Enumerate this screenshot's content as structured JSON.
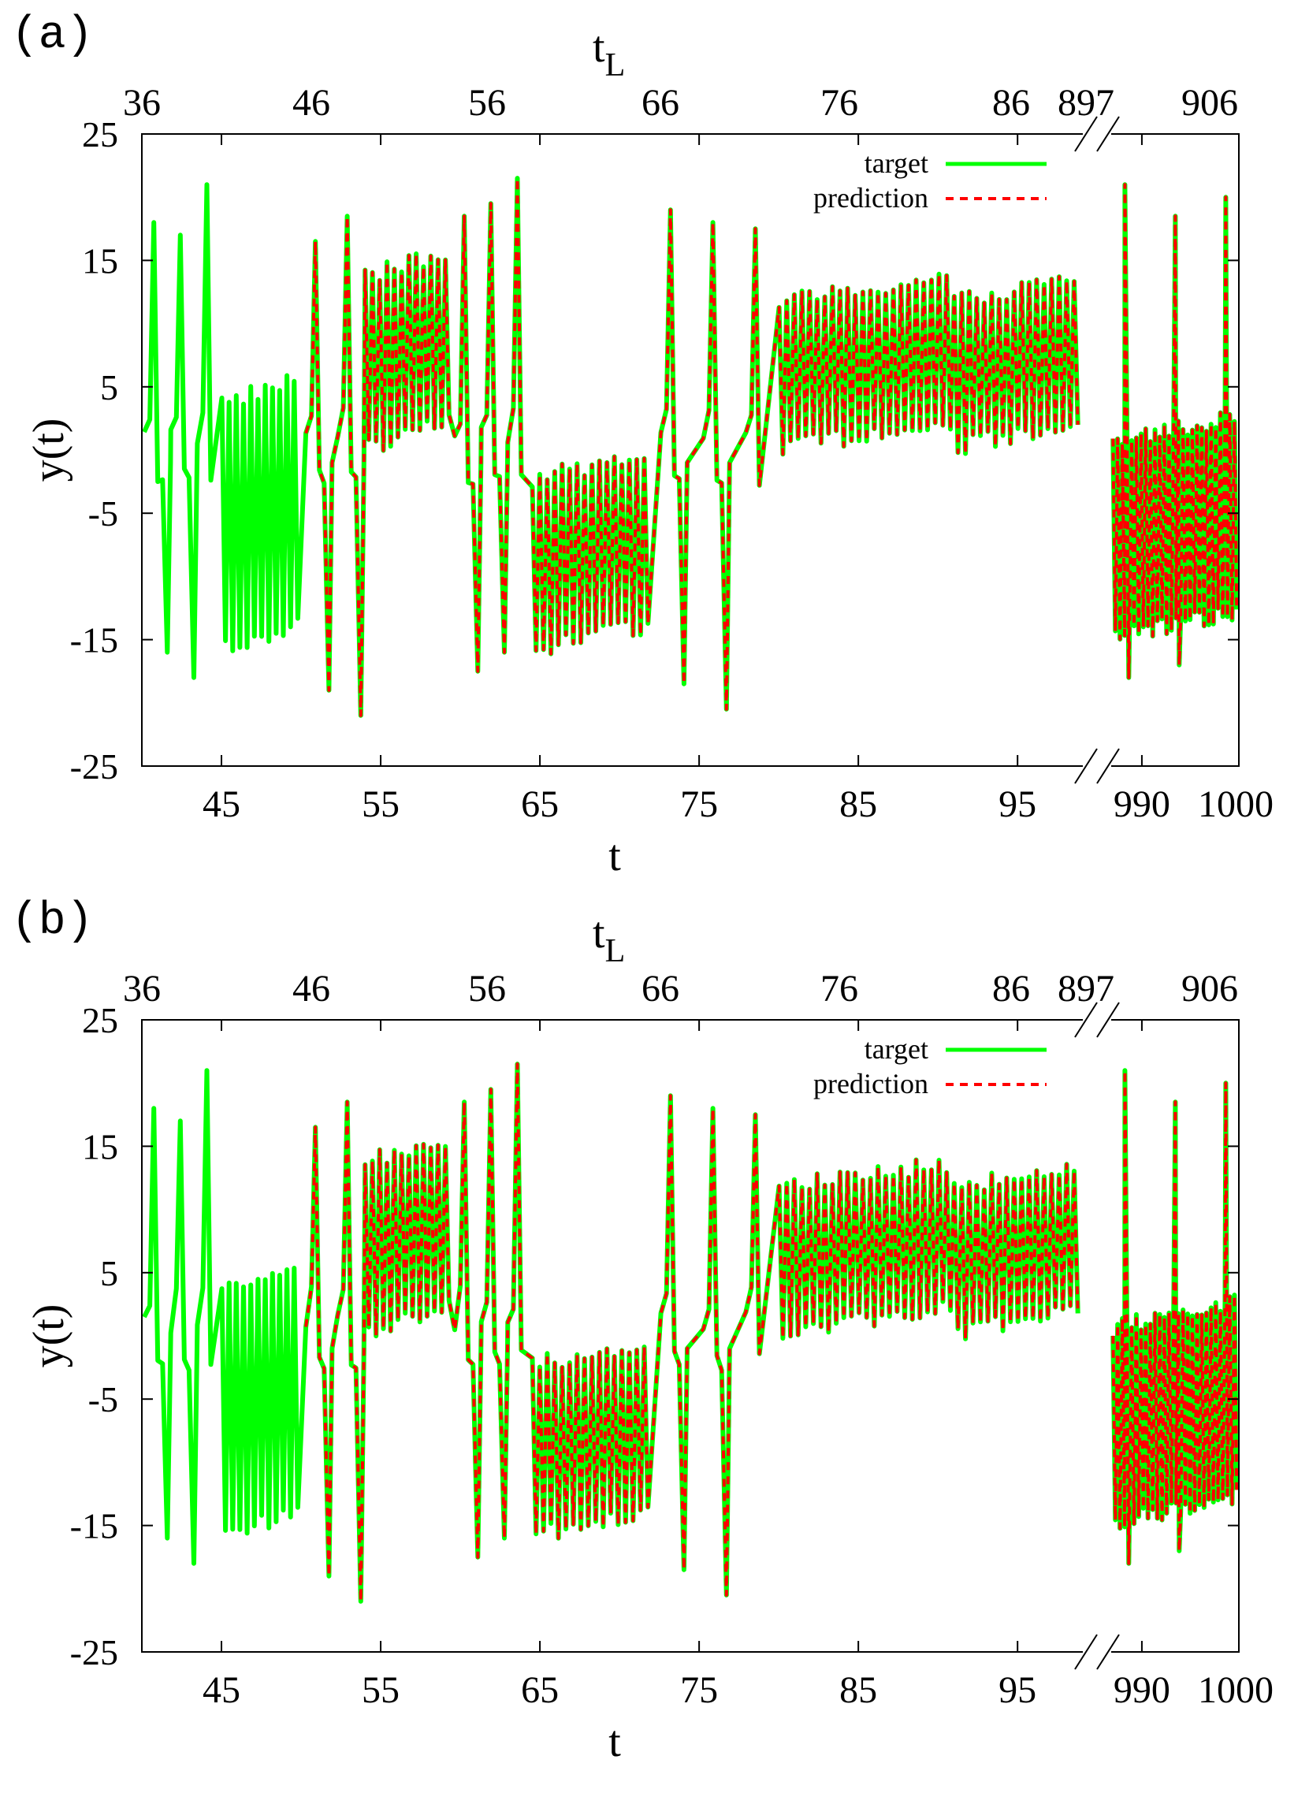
{
  "chart_data": [
    {
      "type": "line",
      "panel_label": "(a)",
      "xlabel": "t",
      "x2label": "t",
      "x2label_sub": "L",
      "ylabel": "y(t)",
      "ylim": [
        -25,
        25
      ],
      "yticks": [
        -25,
        -15,
        -5,
        5,
        15,
        25
      ],
      "x_segments": [
        {
          "range": [
            40,
            99
          ],
          "ticks": [
            45,
            55,
            65,
            75,
            85,
            95
          ]
        },
        {
          "range": [
            987,
            1000
          ],
          "ticks": [
            990,
            1000
          ]
        }
      ],
      "xtick_labels": [
        "45",
        "55",
        "65",
        "75",
        "85",
        "95",
        "990",
        "1000"
      ],
      "x2tick_labels": [
        "36",
        "46",
        "56",
        "66",
        "76",
        "86",
        "897",
        "906"
      ],
      "legend_position": "top-right",
      "grid": false,
      "series": [
        {
          "name": "target",
          "color": "#00ff00",
          "style": "solid",
          "x_start": 40
        },
        {
          "name": "prediction",
          "color": "#ff0000",
          "style": "dashed",
          "x_start": 50
        }
      ],
      "regimes": [
        {
          "t": [
            40,
            45
          ],
          "kind": "spikes",
          "peaks": [
            18,
            17,
            21
          ],
          "troughs": [
            -16,
            -18
          ]
        },
        {
          "t": [
            45,
            50
          ],
          "kind": "oscillation",
          "center": -5,
          "amp": 9
        },
        {
          "t": [
            50,
            54
          ],
          "kind": "spikes",
          "peaks": [
            16.5,
            18.5
          ],
          "troughs": [
            -19,
            -21
          ]
        },
        {
          "t": [
            54,
            59.5
          ],
          "kind": "oscillation",
          "center": 8,
          "amp": 6
        },
        {
          "t": [
            59.5,
            64.5
          ],
          "kind": "spikes",
          "peaks": [
            18.5,
            19.5,
            21.5
          ],
          "troughs": [
            -17.5,
            -16
          ]
        },
        {
          "t": [
            64.5,
            72
          ],
          "kind": "oscillation",
          "center": -8,
          "amp": 6
        },
        {
          "t": [
            72,
            80
          ],
          "kind": "spikes",
          "peaks": [
            19,
            18,
            17.5
          ],
          "troughs": [
            -18.5,
            -20.5
          ]
        },
        {
          "t": [
            80,
            91
          ],
          "kind": "oscillation",
          "center": 7,
          "amp": 5
        },
        {
          "t": [
            91,
            99
          ],
          "kind": "oscillation",
          "center": 7,
          "amp": 5
        },
        {
          "t": [
            987,
            1000
          ],
          "kind": "oscillation",
          "center": -6,
          "amp": 7,
          "peaks": [
            21,
            18.5,
            20
          ],
          "troughs": [
            -18,
            -17
          ]
        }
      ],
      "y_extrema": [
        -22,
        21.5
      ]
    },
    {
      "type": "line",
      "panel_label": "(b)",
      "xlabel": "t",
      "x2label": "t",
      "x2label_sub": "L",
      "ylabel": "y(t)",
      "ylim": [
        -25,
        25
      ],
      "yticks": [
        -25,
        -15,
        -5,
        5,
        15,
        25
      ],
      "x_segments": [
        {
          "range": [
            40,
            99
          ],
          "ticks": [
            45,
            55,
            65,
            75,
            85,
            95
          ]
        },
        {
          "range": [
            987,
            1000
          ],
          "ticks": [
            990,
            1000
          ]
        }
      ],
      "xtick_labels": [
        "45",
        "55",
        "65",
        "75",
        "85",
        "95",
        "990",
        "1000"
      ],
      "x2tick_labels": [
        "36",
        "46",
        "56",
        "66",
        "76",
        "86",
        "897",
        "906"
      ],
      "legend_position": "top-right",
      "grid": false,
      "series": [
        {
          "name": "target",
          "color": "#00ff00",
          "style": "solid",
          "x_start": 40
        },
        {
          "name": "prediction",
          "color": "#ff0000",
          "style": "dashed",
          "x_start": 50
        }
      ],
      "regimes": [
        {
          "t": [
            40,
            45
          ],
          "kind": "spikes",
          "peaks": [
            18,
            17,
            21
          ],
          "troughs": [
            -16,
            -18
          ]
        },
        {
          "t": [
            45,
            50
          ],
          "kind": "oscillation",
          "center": -5,
          "amp": 9
        },
        {
          "t": [
            50,
            54
          ],
          "kind": "spikes",
          "peaks": [
            16.5,
            18.5
          ],
          "troughs": [
            -19,
            -21
          ]
        },
        {
          "t": [
            54,
            59.5
          ],
          "kind": "oscillation",
          "center": 8,
          "amp": 6
        },
        {
          "t": [
            59.5,
            64.5
          ],
          "kind": "spikes",
          "peaks": [
            18.5,
            19.5,
            21.5
          ],
          "troughs": [
            -17.5,
            -16
          ]
        },
        {
          "t": [
            64.5,
            72
          ],
          "kind": "oscillation",
          "center": -8,
          "amp": 6
        },
        {
          "t": [
            72,
            80
          ],
          "kind": "spikes",
          "peaks": [
            19,
            18,
            17.5
          ],
          "troughs": [
            -18.5,
            -20.5
          ]
        },
        {
          "t": [
            80,
            91
          ],
          "kind": "oscillation",
          "center": 7,
          "amp": 5
        },
        {
          "t": [
            91,
            99
          ],
          "kind": "oscillation",
          "center": 7,
          "amp": 5
        },
        {
          "t": [
            987,
            1000
          ],
          "kind": "oscillation",
          "center": -6,
          "amp": 7,
          "peaks": [
            21,
            18.5,
            20
          ],
          "troughs": [
            -18,
            -17
          ]
        }
      ],
      "y_extrema": [
        -22,
        21.5
      ]
    }
  ]
}
